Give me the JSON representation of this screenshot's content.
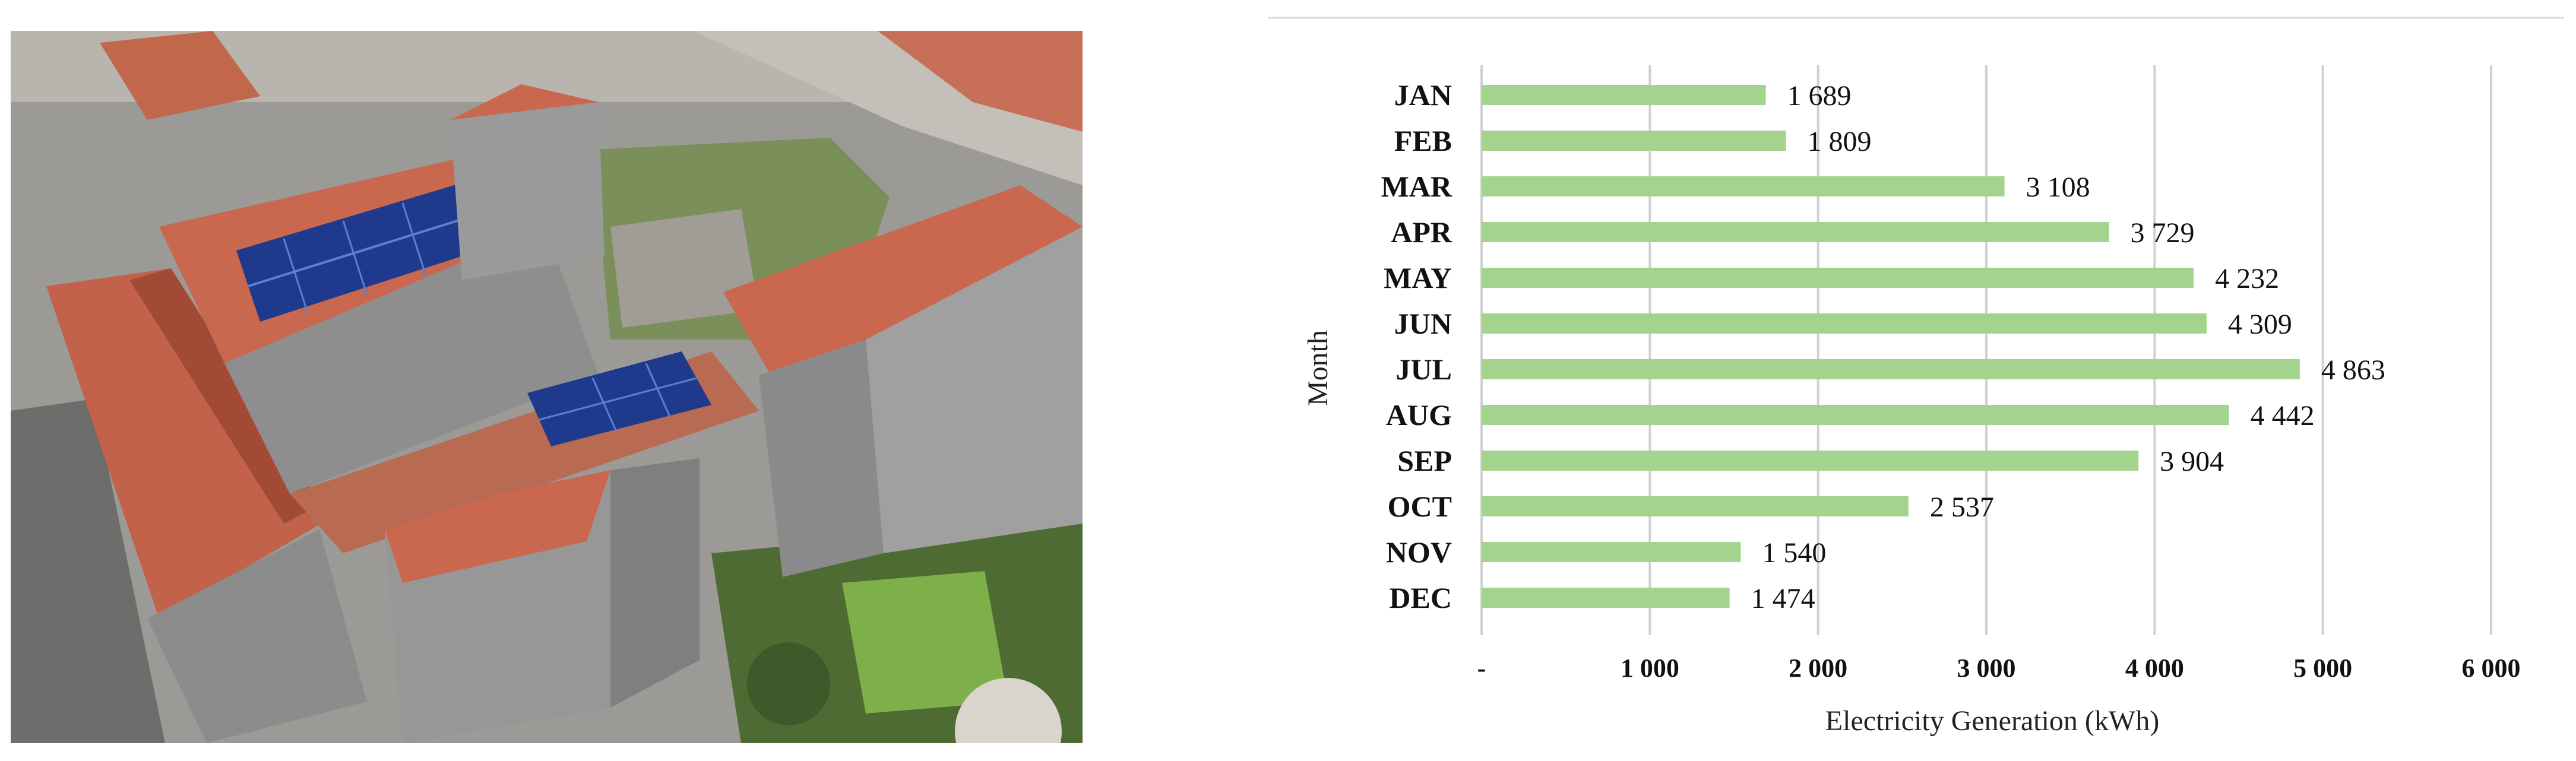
{
  "scene": {
    "roof_color": "#c9674f",
    "facade_color": "#8e8e8e",
    "panel_color": "#1f3a8c",
    "vegetation_color": "#5f8f3b"
  },
  "chart_data": {
    "type": "bar",
    "orientation": "horizontal",
    "categories": [
      "JAN",
      "FEB",
      "MAR",
      "APR",
      "MAY",
      "JUN",
      "JUL",
      "AUG",
      "SEP",
      "OCT",
      "NOV",
      "DEC"
    ],
    "values": [
      1689,
      1809,
      3108,
      3729,
      4232,
      4309,
      4863,
      4442,
      3904,
      2537,
      1540,
      1474
    ],
    "value_labels": [
      "1 689",
      "1 809",
      "3 108",
      "3 729",
      "4 232",
      "4 309",
      "4 863",
      "4 442",
      "3 904",
      "2 537",
      "1 540",
      "1 474"
    ],
    "xlabel": "Electricity Generation (kWh)",
    "ylabel": "Month",
    "xlim": [
      0,
      6000
    ],
    "xticks": [
      0,
      1000,
      2000,
      3000,
      4000,
      5000,
      6000
    ],
    "xtick_labels": [
      "-",
      "1 000",
      "2 000",
      "3 000",
      "4 000",
      "5 000",
      "6 000"
    ],
    "grid": "vertical",
    "bar_color": "#a3d38c"
  }
}
